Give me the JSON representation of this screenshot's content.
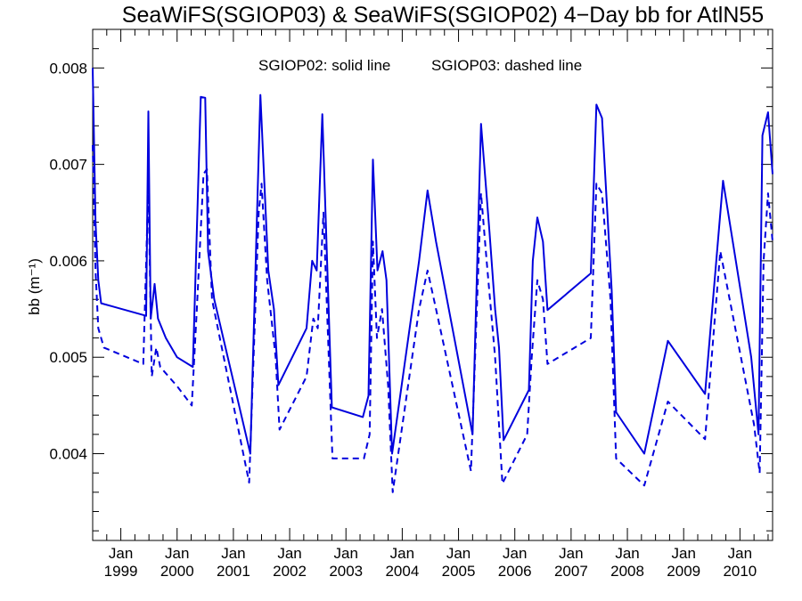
{
  "chart_data": {
    "type": "line",
    "title": "SeaWiFS(SGIOP03) & SeaWiFS(SGIOP02) 4−Day bb for AtlN55",
    "annotations": {
      "solid": "SGIOP02: solid line",
      "dashed": "SGIOP03: dashed line"
    },
    "ylabel": "bb (m⁻¹)",
    "xlabel": "",
    "xlim": [
      1998.5,
      2010.58
    ],
    "ylim": [
      0.0031,
      0.0084
    ],
    "yticks": [
      {
        "value": 0.004,
        "label": "0.004"
      },
      {
        "value": 0.005,
        "label": "0.005"
      },
      {
        "value": 0.006,
        "label": "0.006"
      },
      {
        "value": 0.007,
        "label": "0.007"
      },
      {
        "value": 0.008,
        "label": "0.008"
      }
    ],
    "xticks": [
      {
        "value": 1999,
        "month": "Jan",
        "year": "1999"
      },
      {
        "value": 2000,
        "month": "Jan",
        "year": "2000"
      },
      {
        "value": 2001,
        "month": "Jan",
        "year": "2001"
      },
      {
        "value": 2002,
        "month": "Jan",
        "year": "2002"
      },
      {
        "value": 2003,
        "month": "Jan",
        "year": "2003"
      },
      {
        "value": 2004,
        "month": "Jan",
        "year": "2004"
      },
      {
        "value": 2005,
        "month": "Jan",
        "year": "2005"
      },
      {
        "value": 2006,
        "month": "Jan",
        "year": "2006"
      },
      {
        "value": 2007,
        "month": "Jan",
        "year": "2007"
      },
      {
        "value": 2008,
        "month": "Jan",
        "year": "2008"
      },
      {
        "value": 2009,
        "month": "Jan",
        "year": "2009"
      },
      {
        "value": 2010,
        "month": "Jan",
        "year": "2010"
      }
    ],
    "grid": false,
    "color": "#0000dd",
    "series": [
      {
        "style": "solid",
        "points": [
          [
            1998.5,
            0.008
          ],
          [
            1998.55,
            0.0064
          ],
          [
            1998.6,
            0.0058
          ],
          [
            1998.65,
            0.00556
          ],
          [
            1999.45,
            0.00543
          ],
          [
            1999.49,
            0.00755
          ],
          [
            1999.53,
            0.0054
          ],
          [
            1999.6,
            0.00576
          ],
          [
            1999.66,
            0.0054
          ],
          [
            1999.8,
            0.0052
          ],
          [
            2000.0,
            0.005
          ],
          [
            2000.28,
            0.0049
          ],
          [
            2000.42,
            0.0077
          ],
          [
            2000.5,
            0.00769
          ],
          [
            2000.55,
            0.0061
          ],
          [
            2000.66,
            0.0056
          ],
          [
            2001.3,
            0.004
          ],
          [
            2001.48,
            0.00772
          ],
          [
            2001.62,
            0.0059
          ],
          [
            2001.72,
            0.0055
          ],
          [
            2001.8,
            0.00471
          ],
          [
            2002.3,
            0.0053
          ],
          [
            2002.4,
            0.006
          ],
          [
            2002.48,
            0.0059
          ],
          [
            2002.58,
            0.00752
          ],
          [
            2002.75,
            0.00448
          ],
          [
            2003.3,
            0.00438
          ],
          [
            2003.4,
            0.0046
          ],
          [
            2003.48,
            0.00705
          ],
          [
            2003.56,
            0.0059
          ],
          [
            2003.65,
            0.0061
          ],
          [
            2003.72,
            0.0058
          ],
          [
            2003.82,
            0.004
          ],
          [
            2004.3,
            0.006
          ],
          [
            2004.45,
            0.00673
          ],
          [
            2004.6,
            0.0062
          ],
          [
            2005.25,
            0.0042
          ],
          [
            2005.4,
            0.00742
          ],
          [
            2005.55,
            0.0063
          ],
          [
            2005.65,
            0.0055
          ],
          [
            2005.72,
            0.0051
          ],
          [
            2005.8,
            0.00414
          ],
          [
            2006.25,
            0.00466
          ],
          [
            2006.32,
            0.006
          ],
          [
            2006.4,
            0.00645
          ],
          [
            2006.5,
            0.0062
          ],
          [
            2006.58,
            0.00549
          ],
          [
            2007.35,
            0.00587
          ],
          [
            2007.45,
            0.00762
          ],
          [
            2007.55,
            0.00748
          ],
          [
            2007.72,
            0.0057
          ],
          [
            2007.8,
            0.00443
          ],
          [
            2008.3,
            0.004
          ],
          [
            2008.72,
            0.00517
          ],
          [
            2009.38,
            0.00462
          ],
          [
            2009.7,
            0.00683
          ],
          [
            2010.2,
            0.005
          ],
          [
            2010.33,
            0.0042
          ],
          [
            2010.4,
            0.0073
          ],
          [
            2010.5,
            0.00754
          ],
          [
            2010.58,
            0.0069
          ]
        ]
      },
      {
        "style": "dashed",
        "points": [
          [
            1998.5,
            0.0072
          ],
          [
            1998.55,
            0.0059
          ],
          [
            1998.6,
            0.0053
          ],
          [
            1998.7,
            0.0051
          ],
          [
            1999.4,
            0.00493
          ],
          [
            1999.49,
            0.0068
          ],
          [
            1999.55,
            0.0048
          ],
          [
            1999.63,
            0.0051
          ],
          [
            1999.7,
            0.0049
          ],
          [
            2000.0,
            0.0047
          ],
          [
            2000.26,
            0.0045
          ],
          [
            2000.35,
            0.0055
          ],
          [
            2000.47,
            0.0069
          ],
          [
            2000.53,
            0.00695
          ],
          [
            2000.62,
            0.0056
          ],
          [
            2001.28,
            0.0037
          ],
          [
            2001.45,
            0.0065
          ],
          [
            2001.5,
            0.0068
          ],
          [
            2001.6,
            0.0058
          ],
          [
            2001.75,
            0.005
          ],
          [
            2001.82,
            0.00425
          ],
          [
            2002.3,
            0.0048
          ],
          [
            2002.42,
            0.0054
          ],
          [
            2002.5,
            0.0053
          ],
          [
            2002.6,
            0.0065
          ],
          [
            2002.76,
            0.00395
          ],
          [
            2003.32,
            0.00395
          ],
          [
            2003.42,
            0.0042
          ],
          [
            2003.48,
            0.0062
          ],
          [
            2003.55,
            0.0052
          ],
          [
            2003.64,
            0.0055
          ],
          [
            2003.75,
            0.0047
          ],
          [
            2003.83,
            0.0036
          ],
          [
            2004.3,
            0.0055
          ],
          [
            2004.45,
            0.0059
          ],
          [
            2004.6,
            0.0055
          ],
          [
            2005.22,
            0.00382
          ],
          [
            2005.4,
            0.0067
          ],
          [
            2005.5,
            0.006
          ],
          [
            2005.65,
            0.005
          ],
          [
            2005.78,
            0.00369
          ],
          [
            2006.22,
            0.0042
          ],
          [
            2006.3,
            0.005
          ],
          [
            2006.4,
            0.0058
          ],
          [
            2006.5,
            0.0056
          ],
          [
            2006.58,
            0.00493
          ],
          [
            2007.35,
            0.0052
          ],
          [
            2007.45,
            0.0068
          ],
          [
            2007.55,
            0.0067
          ],
          [
            2007.7,
            0.0056
          ],
          [
            2007.8,
            0.00395
          ],
          [
            2008.3,
            0.00367
          ],
          [
            2008.72,
            0.00454
          ],
          [
            2009.38,
            0.00415
          ],
          [
            2009.65,
            0.0061
          ],
          [
            2010.25,
            0.0043
          ],
          [
            2010.35,
            0.0038
          ],
          [
            2010.42,
            0.006
          ],
          [
            2010.5,
            0.0067
          ],
          [
            2010.58,
            0.0062
          ]
        ]
      }
    ]
  }
}
